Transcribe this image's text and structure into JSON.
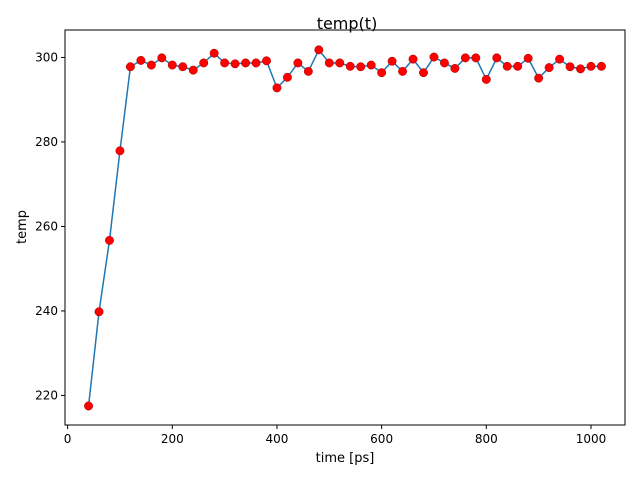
{
  "chart_data": {
    "type": "line",
    "title": "temp(t)",
    "xlabel": "time [ps]",
    "ylabel": "temp",
    "xlim": [
      -5,
      1065
    ],
    "ylim": [
      213,
      306.5
    ],
    "xticks": [
      0,
      200,
      400,
      600,
      800,
      1000
    ],
    "yticks": [
      220,
      240,
      260,
      280,
      300
    ],
    "grid": false,
    "legend": "none",
    "line_color": "#1f77b4",
    "marker_color": "#ff0000",
    "marker_edge_color": "#a00000",
    "series": [
      {
        "x": [
          40,
          60,
          80,
          100,
          120,
          140,
          160,
          180,
          200,
          220,
          240,
          260,
          280,
          300,
          320,
          340,
          360,
          380,
          400,
          420,
          440,
          460,
          480,
          500,
          520,
          540,
          560,
          580,
          600,
          620,
          640,
          660,
          680,
          700,
          720,
          740,
          760,
          780,
          800,
          820,
          840,
          860,
          880,
          900,
          920,
          940,
          960,
          980,
          1000,
          1020
        ],
        "y": [
          217.5,
          239.8,
          256.7,
          277.9,
          297.8,
          299.3,
          298.2,
          299.9,
          298.2,
          297.8,
          297.0,
          298.7,
          301.0,
          298.7,
          298.5,
          298.7,
          298.7,
          299.2,
          292.8,
          295.3,
          298.7,
          296.7,
          301.8,
          298.7,
          298.7,
          297.9,
          297.8,
          298.2,
          296.4,
          299.1,
          296.7,
          299.6,
          296.4,
          300.1,
          298.7,
          297.4,
          299.9,
          299.9,
          294.8,
          299.9,
          297.9,
          297.9,
          299.8,
          295.1,
          297.6,
          299.6,
          297.8,
          297.3,
          297.9,
          297.9
        ]
      }
    ]
  }
}
